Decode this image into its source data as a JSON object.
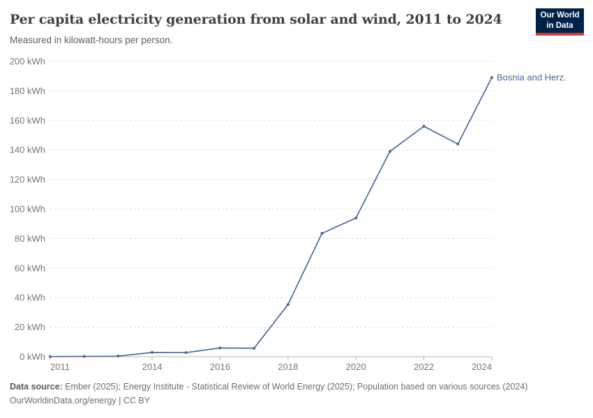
{
  "header": {
    "title": "Per capita electricity generation from solar and wind, 2011 to 2024",
    "subtitle": "Measured in kilowatt-hours per person.",
    "logo": {
      "line1": "Our World",
      "line2": "in Data",
      "bg_color": "#002147",
      "accent_color": "#d7382e"
    }
  },
  "chart_data": {
    "type": "line",
    "title": "Per capita electricity generation from solar and wind, 2011 to 2024",
    "unit": "kWh",
    "x": [
      2011,
      2012,
      2013,
      2014,
      2015,
      2016,
      2017,
      2018,
      2019,
      2020,
      2021,
      2022,
      2023,
      2024
    ],
    "series": [
      {
        "name": "Bosnia and Herz.",
        "color": "#4c6a9c",
        "values": [
          0.1,
          0.2,
          0.4,
          2.9,
          2.8,
          5.9,
          5.7,
          35.3,
          83.5,
          93.9,
          139,
          156,
          144,
          189
        ]
      }
    ],
    "ylim": [
      0,
      200
    ],
    "ytick_step": 20,
    "ytick_labels": [
      "0 kWh",
      "20 kWh",
      "40 kWh",
      "60 kWh",
      "80 kWh",
      "100 kWh",
      "120 kWh",
      "140 kWh",
      "160 kWh",
      "180 kWh",
      "200 kWh"
    ],
    "xticks": [
      2011,
      2014,
      2016,
      2018,
      2020,
      2022,
      2024
    ],
    "xtick_labels": [
      "2011",
      "2014",
      "2016",
      "2018",
      "2020",
      "2022",
      "2024"
    ],
    "grid": "horizontal-dashed",
    "legend": "end-of-line-label",
    "colors": {
      "grid": "#dcdcdc",
      "axis": "#b3b3b3",
      "tick_text": "#757575"
    }
  },
  "footer": {
    "source_label": "Data source:",
    "source_text": " Ember (2025); Energy Institute - Statistical Review of World Energy (2025); Population based on various sources (2024)",
    "link": "OurWorldinData.org/energy",
    "separator": " | ",
    "license": "CC BY"
  }
}
